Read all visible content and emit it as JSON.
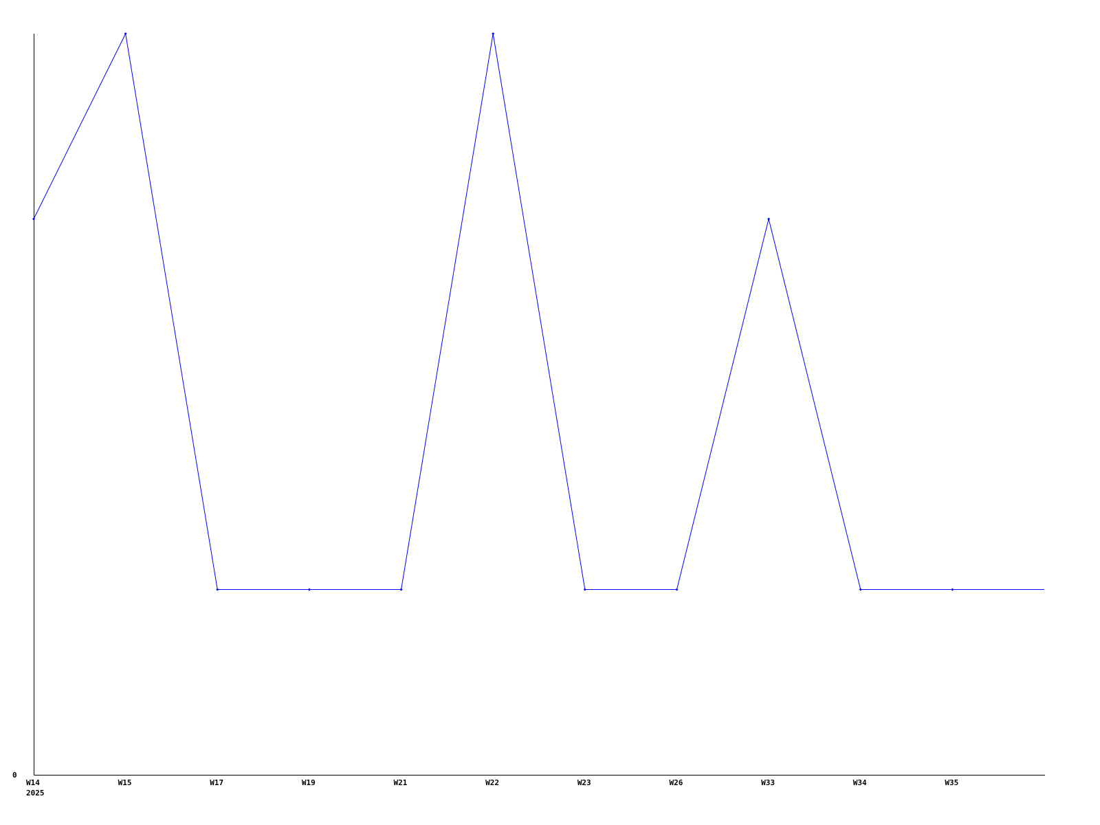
{
  "chart_data": {
    "type": "line",
    "title": "",
    "xlabel": "",
    "ylabel": "",
    "categories": [
      "W14",
      "W15",
      "W17",
      "W19",
      "W21",
      "W22",
      "W23",
      "W26",
      "W33",
      "W34",
      "W35"
    ],
    "year_label": "2025",
    "y_tick_labels": [
      "0"
    ],
    "ylim": [
      0,
      4
    ],
    "series": [
      {
        "values": [
          3,
          4,
          1,
          1,
          1,
          4,
          1,
          1,
          3,
          1,
          1
        ],
        "color": "#0000ff"
      }
    ],
    "line_continues_right_at_value": 1,
    "grid": false,
    "legend": "none",
    "axis_color": "#000000"
  }
}
